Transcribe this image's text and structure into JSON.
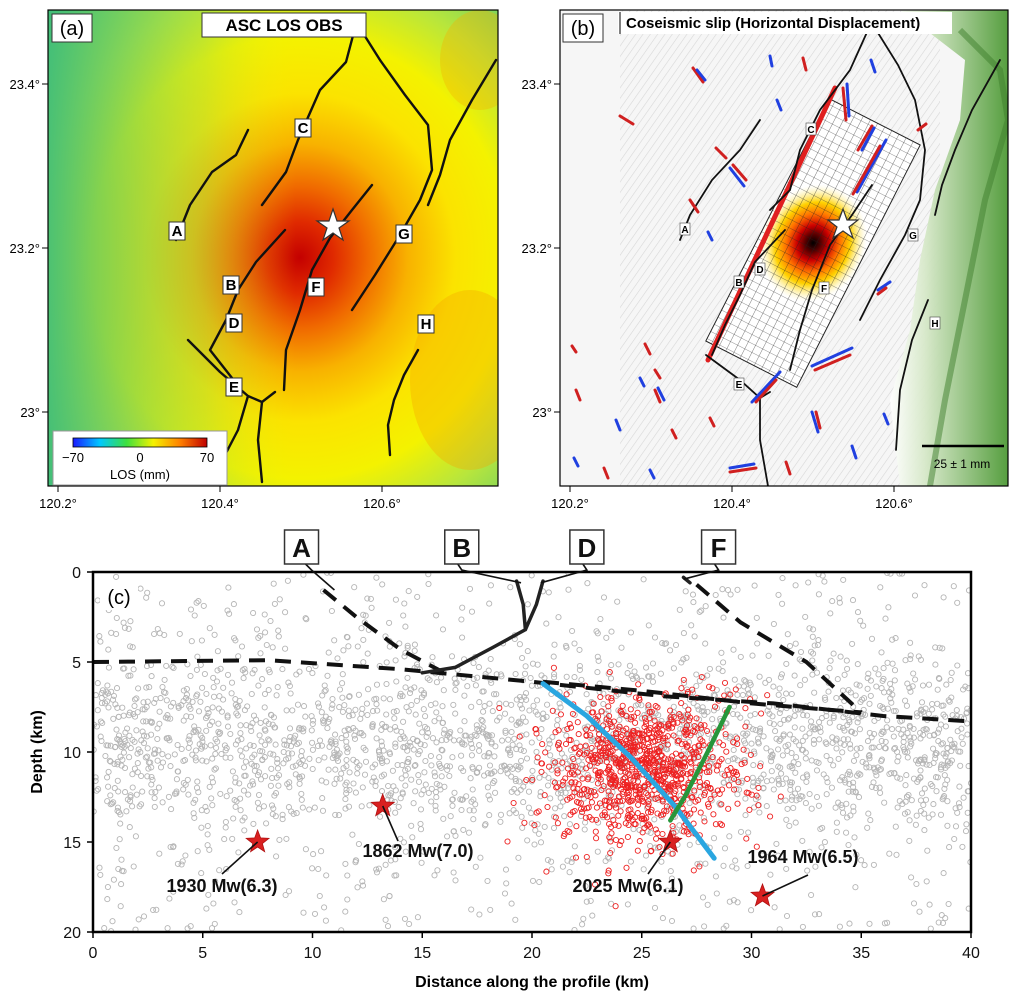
{
  "panels": {
    "a": {
      "label": "(a)",
      "title": "ASC LOS OBS",
      "colorbar": {
        "ticks": [
          "−70",
          "0",
          "70"
        ],
        "label": "LOS (mm)"
      }
    },
    "b": {
      "label": "(b)",
      "title": "Coseismic slip (Horizontal Displacement)",
      "scale_label": "25 ± 1 mm"
    },
    "c": {
      "label": "(c)",
      "xlabel": "Distance along the profile (km)",
      "ylabel": "Depth (km)"
    }
  },
  "map_axes": {
    "lat_ticks": [
      "23.4°",
      "23.2°",
      "23°"
    ],
    "lon_ticks": [
      "120.2°",
      "120.4°",
      "120.6°"
    ]
  },
  "fault_letters": [
    "A",
    "B",
    "C",
    "D",
    "E",
    "F",
    "G",
    "H"
  ],
  "chart_data": {
    "type": "scatter",
    "xlabel": "Distance along the profile (km)",
    "ylabel": "Depth (km)",
    "xlim": [
      0,
      40
    ],
    "ylim": [
      20,
      0
    ],
    "x_ticks": [
      0,
      5,
      10,
      15,
      20,
      25,
      30,
      35,
      40
    ],
    "y_ticks": [
      0,
      5,
      10,
      15,
      20
    ],
    "fault_labels": [
      {
        "label": "A",
        "x": 9.5
      },
      {
        "label": "B",
        "x": 16.8
      },
      {
        "label": "D",
        "x": 22.5
      },
      {
        "label": "F",
        "x": 28.5
      }
    ],
    "historical_events": [
      {
        "label": "1930 Mw(6.3)",
        "x": 7.5,
        "depth": 15.0
      },
      {
        "label": "1862 Mw(7.0)",
        "x": 13.2,
        "depth": 13.0
      },
      {
        "label": "2025 Mw(6.1)",
        "x": 26.3,
        "depth": 15.0
      },
      {
        "label": "1964 Mw(6.5)",
        "x": 30.5,
        "depth": 18.0
      }
    ],
    "blue_fault": [
      [
        20.5,
        6.2
      ],
      [
        22.5,
        8.0
      ],
      [
        24.5,
        10.3
      ],
      [
        26.5,
        13.0
      ],
      [
        28.3,
        15.9
      ]
    ],
    "green_fault": [
      [
        29.0,
        7.5
      ],
      [
        28.0,
        10.0
      ],
      [
        27.0,
        12.4
      ],
      [
        26.3,
        13.8
      ]
    ]
  }
}
